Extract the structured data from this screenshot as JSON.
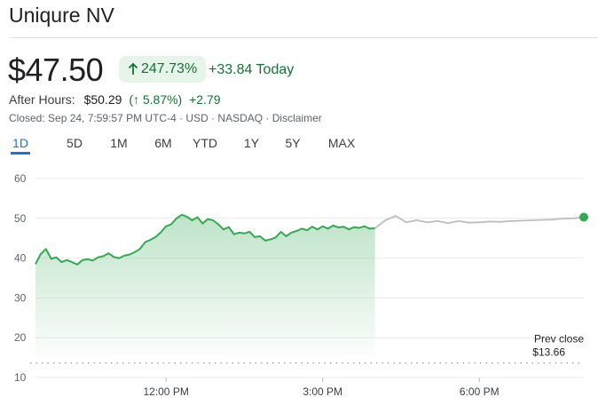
{
  "header": {
    "title": "Uniqure NV"
  },
  "quote": {
    "price": "$47.50",
    "change_pct": "247.73%",
    "change_today": "+33.84 Today",
    "after_hours_label": "After Hours:",
    "after_hours_price": "$50.29",
    "after_hours_pct": "(↑ 5.87%)",
    "after_hours_change": "+2.79",
    "closed_line": "Closed: Sep 24, 7:59:57 PM UTC-4 · USD · NASDAQ · Disclaimer"
  },
  "range_tabs": {
    "active": "1D",
    "items": [
      "1D",
      "5D",
      "1M",
      "6M",
      "YTD",
      "1Y",
      "5Y",
      "MAX"
    ]
  },
  "colors": {
    "positive": "#137333",
    "line_regular": "#34a853",
    "line_after_hours": "#bdbdbd",
    "accent": "#1a73e8"
  },
  "chart_data": {
    "type": "line",
    "xlabel": "",
    "ylabel": "",
    "ylim": [
      10,
      60
    ],
    "y_ticks": [
      "60",
      "50",
      "40",
      "30",
      "20",
      "10"
    ],
    "x_ticks": [
      "12:00 PM",
      "3:00 PM",
      "6:00 PM"
    ],
    "prev_close_label": "Prev close",
    "prev_close_value": "$13.66",
    "prev_close": 13.66,
    "grid": true,
    "series": [
      {
        "session": "regular",
        "x": [
          "09:30",
          "09:36",
          "09:42",
          "09:48",
          "09:54",
          "10:00",
          "10:06",
          "10:12",
          "10:18",
          "10:24",
          "10:30",
          "10:36",
          "10:42",
          "10:48",
          "10:54",
          "11:00",
          "11:06",
          "11:12",
          "11:18",
          "11:24",
          "11:30",
          "11:36",
          "11:42",
          "11:48",
          "11:54",
          "12:00",
          "12:06",
          "12:12",
          "12:18",
          "12:24",
          "12:30",
          "12:36",
          "12:42",
          "12:48",
          "12:54",
          "13:00",
          "13:06",
          "13:12",
          "13:18",
          "13:24",
          "13:30",
          "13:36",
          "13:42",
          "13:48",
          "13:54",
          "14:00",
          "14:06",
          "14:12",
          "14:18",
          "14:24",
          "14:30",
          "14:36",
          "14:42",
          "14:48",
          "14:54",
          "15:00",
          "15:06",
          "15:12",
          "15:18",
          "15:24",
          "15:30",
          "15:36",
          "15:42",
          "15:48",
          "15:54",
          "16:00"
        ],
        "values": [
          38.5,
          41.0,
          42.3,
          39.8,
          40.2,
          39.0,
          39.5,
          39.0,
          38.4,
          39.5,
          39.7,
          39.4,
          40.2,
          40.5,
          41.2,
          40.3,
          40.0,
          40.6,
          40.9,
          41.5,
          42.3,
          44.0,
          44.6,
          45.3,
          46.5,
          48.0,
          48.5,
          50.0,
          50.9,
          50.4,
          49.5,
          50.3,
          48.7,
          49.8,
          49.5,
          48.5,
          47.2,
          47.8,
          46.0,
          46.4,
          46.2,
          46.6,
          45.3,
          45.5,
          44.4,
          44.7,
          45.2,
          46.6,
          45.5,
          46.4,
          46.8,
          47.4,
          47.0,
          47.9,
          47.2,
          48.0,
          47.4,
          48.2,
          47.7,
          47.9,
          47.2,
          47.8,
          47.6,
          48.0,
          47.4,
          47.5
        ]
      },
      {
        "session": "after_hours",
        "x": [
          "16:00",
          "16:12",
          "16:24",
          "16:36",
          "16:48",
          "17:00",
          "17:12",
          "17:24",
          "17:36",
          "17:48",
          "18:00",
          "18:12",
          "18:24",
          "18:36",
          "18:48",
          "19:00",
          "19:12",
          "19:24",
          "19:36",
          "19:48",
          "20:00"
        ],
        "values": [
          47.5,
          49.5,
          50.6,
          49.0,
          49.5,
          49.0,
          49.3,
          48.8,
          49.3,
          48.9,
          49.0,
          49.2,
          49.1,
          49.3,
          49.4,
          49.5,
          49.6,
          49.7,
          49.9,
          50.0,
          50.29
        ]
      }
    ]
  }
}
